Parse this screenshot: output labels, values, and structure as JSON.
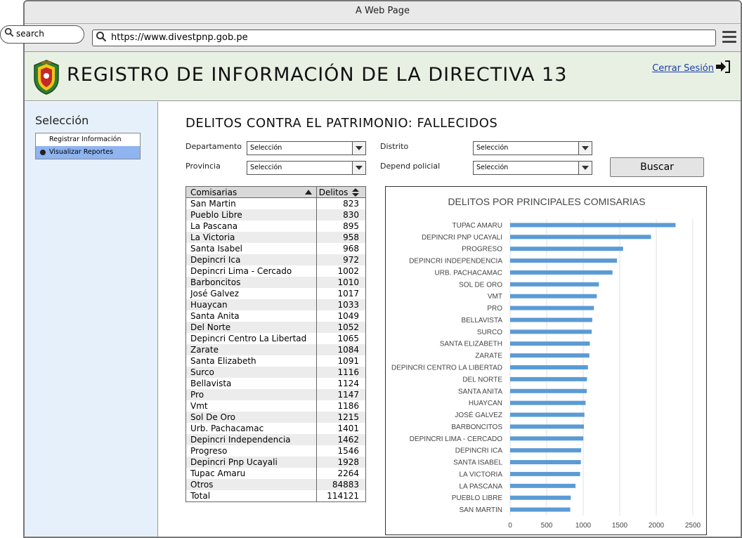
{
  "browser": {
    "window_title": "A Web Page",
    "url": "https://www.divestpnp.gob.pe",
    "search_label": "search"
  },
  "header": {
    "title": "REGISTRO DE INFORMACIÓN DE LA DIRECTIVA 13",
    "logout_label": "Cerrar Sesión"
  },
  "sidebar": {
    "title": "Selección",
    "items": [
      {
        "label": "Registrar Información",
        "active": false
      },
      {
        "label": "Visualizar Reportes",
        "active": true
      }
    ]
  },
  "main": {
    "title": "DELITOS CONTRA EL PATRIMONIO: FALLECIDOS",
    "filters": {
      "departamento_label": "Departamento",
      "departamento_value": "Selección",
      "provincia_label": "Provincia",
      "provincia_value": "Selección",
      "distrito_label": "Distrito",
      "distrito_value": "Selección",
      "depend_label": "Depend policial",
      "depend_value": "Selección"
    },
    "search_button": "Buscar",
    "table": {
      "col_name": "Comisarias",
      "col_value": "Delitos",
      "rows": [
        [
          "San Martin",
          "823"
        ],
        [
          "Pueblo Libre",
          "830"
        ],
        [
          "La Pascana",
          "895"
        ],
        [
          "La Victoria",
          "958"
        ],
        [
          "Santa Isabel",
          "968"
        ],
        [
          "Depincri Ica",
          "972"
        ],
        [
          "Depincri Lima - Cercado",
          "1002"
        ],
        [
          "Barboncitos",
          "1010"
        ],
        [
          "José Galvez",
          "1017"
        ],
        [
          "Huaycan",
          "1033"
        ],
        [
          "Santa Anita",
          "1049"
        ],
        [
          "Del Norte",
          "1052"
        ],
        [
          "Depincri Centro La Libertad",
          "1065"
        ],
        [
          "Zarate",
          "1084"
        ],
        [
          "Santa Elizabeth",
          "1091"
        ],
        [
          "Surco",
          "1116"
        ],
        [
          "Bellavista",
          "1124"
        ],
        [
          "Pro",
          "1147"
        ],
        [
          "Vmt",
          "1186"
        ],
        [
          "Sol De Oro",
          "1215"
        ],
        [
          "Urb. Pachacamac",
          "1401"
        ],
        [
          "Depincri Independencia",
          "1462"
        ],
        [
          "Progreso",
          "1546"
        ],
        [
          "Depincri Pnp Ucayali",
          "1928"
        ],
        [
          "Tupac Amaru",
          "2264"
        ],
        [
          "Otros",
          "84883"
        ],
        [
          "Total",
          "114121"
        ]
      ]
    }
  },
  "chart_data": {
    "type": "bar",
    "orientation": "horizontal",
    "title": "DELITOS POR PRINCIPALES COMISARIAS",
    "color": "#5b9bd5",
    "categories": [
      "TUPAC AMARU",
      "DEPINCRI PNP UCAYALI",
      "PROGRESO",
      "DEPINCRI INDEPENDENCIA",
      "URB. PACHACAMAC",
      "SOL DE ORO",
      "VMT",
      "PRO",
      "BELLAVISTA",
      "SURCO",
      "SANTA ELIZABETH",
      "ZARATE",
      "DEPINCRI CENTRO LA LIBERTAD",
      "DEL NORTE",
      "SANTA ANITA",
      "HUAYCAN",
      "JOSÉ GALVEZ",
      "BARBONCITOS",
      "DEPINCRI LIMA - CERCADO",
      "DEPINCRI ICA",
      "SANTA ISABEL",
      "LA VICTORIA",
      "LA PASCANA",
      "PUEBLO LIBRE",
      "SAN MARTIN"
    ],
    "values": [
      2264,
      1928,
      1546,
      1462,
      1401,
      1215,
      1186,
      1147,
      1124,
      1116,
      1091,
      1084,
      1065,
      1052,
      1049,
      1033,
      1017,
      1010,
      1002,
      972,
      968,
      958,
      895,
      830,
      823
    ],
    "xticks": [
      "0",
      "500",
      "1000",
      "1500",
      "2000",
      "2500"
    ],
    "xlim": [
      0,
      2500
    ],
    "grid": true
  }
}
